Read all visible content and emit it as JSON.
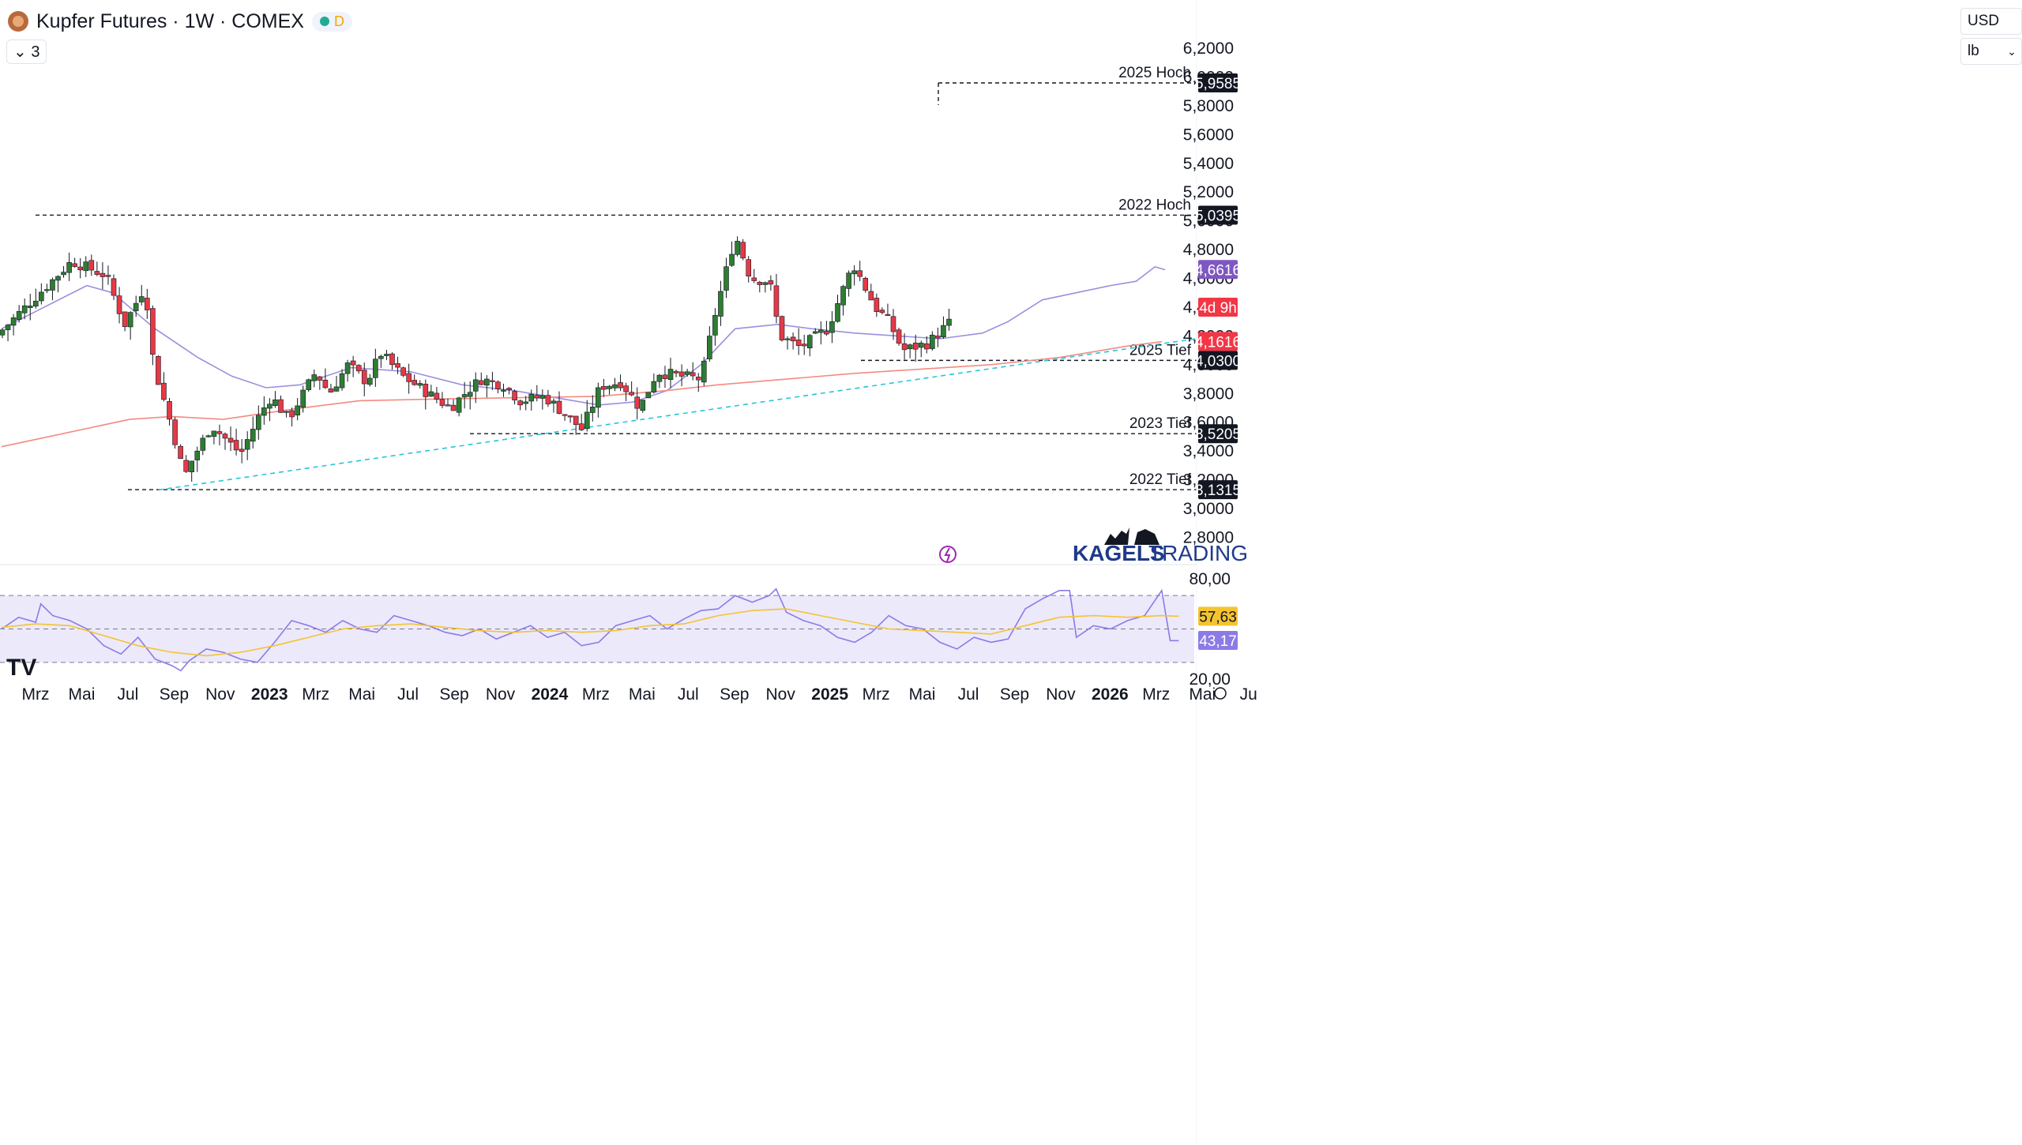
{
  "header": {
    "title": "Kupfer Futures · 1W · COMEX",
    "status_label": "D",
    "collapse_label": "⌄ 3"
  },
  "scale": {
    "currency": "USD",
    "unit": "lb"
  },
  "watermark": {
    "brand_a": "KAGELS",
    "brand_b": "TRADING"
  },
  "colors": {
    "up": "#26a69a",
    "up_fill": "#2e7d32",
    "down": "#e53950",
    "down_fill": "#e63946",
    "ma_short": "#9c8fde",
    "ma_long": "#f28b82",
    "trend": "#26c6da",
    "rsi": "#8c7ae6",
    "rsi_ma": "#f4c430",
    "rsi_band": "#ece9fb"
  },
  "chart_data": [
    {
      "type": "candlestick",
      "title": "Kupfer Futures · 1W · COMEX",
      "ylim": [
        2.65,
        6.25
      ],
      "y_ticks": [
        "6,2000",
        "6,0000",
        "5,8000",
        "5,6000",
        "5,4000",
        "5,2000",
        "5,0000",
        "4,8000",
        "4,6000",
        "4,4000",
        "4,2000",
        "4,0000",
        "3,8000",
        "3,6000",
        "3,4000",
        "3,2000",
        "3,0000",
        "2,8000"
      ],
      "x_ticks": [
        "Mrz",
        "Mai",
        "Jul",
        "Sep",
        "Nov",
        "2023",
        "Mrz",
        "Mai",
        "Jul",
        "Sep",
        "Nov",
        "2024",
        "Mrz",
        "Mai",
        "Jul",
        "Sep",
        "Nov",
        "2025",
        "Mrz",
        "Mai",
        "Jul",
        "Sep",
        "Nov",
        "2026",
        "Mrz",
        "Mai",
        "Ju"
      ],
      "levels": [
        {
          "label": "2025 Hoch",
          "value": 5.9585,
          "tag": "5,9585"
        },
        {
          "label": "2022 Hoch",
          "value": 5.0395,
          "tag": "5,0395"
        },
        {
          "label": "2025 Tief",
          "value": 4.03,
          "tag": "4,0300"
        },
        {
          "label": "2023 Tief",
          "value": 3.5205,
          "tag": "3,5205"
        },
        {
          "label": "2022 Tief",
          "value": 3.1315,
          "tag": "3,1315"
        }
      ],
      "price_tags": [
        {
          "value": 4.6616,
          "tag": "4,6616",
          "color": "#7e57c2"
        },
        {
          "value": 4.4,
          "tag": "4d 9h",
          "color": "#f23645"
        },
        {
          "value": 4.1616,
          "tag": "4,1616",
          "color": "#f23645"
        }
      ],
      "close_path": [
        [
          2.0,
          4.45
        ],
        [
          4.3,
          4.72
        ],
        [
          6.3,
          4.62
        ],
        [
          7.4,
          4.28
        ],
        [
          8.6,
          4.55
        ],
        [
          9.1,
          4.0
        ],
        [
          10.2,
          3.55
        ],
        [
          10.9,
          3.22
        ],
        [
          11.4,
          3.35
        ],
        [
          12.5,
          3.58
        ],
        [
          13.6,
          3.45
        ],
        [
          14.2,
          3.38
        ],
        [
          15.3,
          3.65
        ],
        [
          16.0,
          3.78
        ],
        [
          17.0,
          3.62
        ],
        [
          18.6,
          3.95
        ],
        [
          19.4,
          3.8
        ],
        [
          20.5,
          4.0
        ],
        [
          21.6,
          3.88
        ],
        [
          22.4,
          4.08
        ],
        [
          23.7,
          3.92
        ],
        [
          25.2,
          3.8
        ],
        [
          26.5,
          3.7
        ],
        [
          27.5,
          3.82
        ],
        [
          28.3,
          3.9
        ],
        [
          29.6,
          3.86
        ],
        [
          30.6,
          3.75
        ],
        [
          32.0,
          3.78
        ],
        [
          33.0,
          3.68
        ],
        [
          34.2,
          3.55
        ],
        [
          35.3,
          3.85
        ],
        [
          36.5,
          3.88
        ],
        [
          37.6,
          3.7
        ],
        [
          38.6,
          3.95
        ],
        [
          40.0,
          3.92
        ],
        [
          41.2,
          3.9
        ],
        [
          42.0,
          4.35
        ],
        [
          43.2,
          4.9
        ],
        [
          44.1,
          4.6
        ],
        [
          45.2,
          4.58
        ],
        [
          45.8,
          4.2
        ],
        [
          47.0,
          4.12
        ],
        [
          48.6,
          4.25
        ],
        [
          50.1,
          4.7
        ],
        [
          51.4,
          4.4
        ],
        [
          52.2,
          4.3
        ],
        [
          53.0,
          4.1
        ],
        [
          54.5,
          4.15
        ],
        [
          56.0,
          4.32
        ],
        [
          57.0,
          4.28
        ],
        [
          58.0,
          4.5
        ],
        [
          59.7,
          4.85
        ],
        [
          60.3,
          4.6
        ],
        [
          61.3,
          4.98
        ],
        [
          62.2,
          4.75
        ],
        [
          63.3,
          4.65
        ],
        [
          65.0,
          4.78
        ],
        [
          66.0,
          4.75
        ],
        [
          67.0,
          4.95
        ],
        [
          67.8,
          5.55
        ],
        [
          68.4,
          5.8
        ],
        [
          68.7,
          4.4
        ],
        [
          68.9,
          4.38
        ]
      ],
      "series": [
        {
          "name": "",
          "kind": "ma",
          "color_key": "ma_short",
          "points": [
            [
              0,
              4.25
            ],
            [
              5.0,
              4.55
            ],
            [
              6.5,
              4.5
            ],
            [
              9.0,
              4.25
            ],
            [
              11.5,
              4.05
            ],
            [
              13.5,
              3.92
            ],
            [
              15.5,
              3.84
            ],
            [
              17.5,
              3.86
            ],
            [
              20.5,
              3.98
            ],
            [
              24.0,
              3.95
            ],
            [
              27.0,
              3.86
            ],
            [
              30.0,
              3.82
            ],
            [
              33.0,
              3.76
            ],
            [
              35.0,
              3.72
            ],
            [
              37.0,
              3.74
            ],
            [
              39.0,
              3.82
            ],
            [
              41.0,
              4.0
            ],
            [
              43.0,
              4.25
            ],
            [
              45.5,
              4.28
            ],
            [
              47.5,
              4.25
            ],
            [
              50.0,
              4.22
            ],
            [
              52.5,
              4.2
            ],
            [
              55.0,
              4.18
            ],
            [
              57.5,
              4.22
            ],
            [
              59.0,
              4.3
            ],
            [
              61.0,
              4.45
            ],
            [
              63.0,
              4.5
            ],
            [
              65.0,
              4.55
            ],
            [
              66.5,
              4.58
            ],
            [
              67.6,
              4.68
            ],
            [
              68.2,
              4.66
            ]
          ]
        },
        {
          "name": "",
          "kind": "ma",
          "color_key": "ma_long",
          "points": [
            [
              0,
              3.43
            ],
            [
              7.5,
              3.62
            ],
            [
              10.0,
              3.64
            ],
            [
              13.0,
              3.62
            ],
            [
              17.0,
              3.69
            ],
            [
              21.0,
              3.75
            ],
            [
              25.0,
              3.76
            ],
            [
              30.0,
              3.77
            ],
            [
              35.0,
              3.78
            ],
            [
              39.0,
              3.82
            ],
            [
              42.0,
              3.86
            ],
            [
              46.0,
              3.9
            ],
            [
              50.0,
              3.94
            ],
            [
              54.0,
              3.97
            ],
            [
              58.0,
              4.0
            ],
            [
              62.0,
              4.05
            ],
            [
              66.0,
              4.13
            ],
            [
              68.0,
              4.16
            ]
          ]
        },
        {
          "name": "",
          "kind": "trendline",
          "color_key": "trend",
          "points": [
            [
              9.2,
              3.13
            ],
            [
              70.0,
              4.18
            ]
          ]
        }
      ]
    },
    {
      "type": "line",
      "ylim": [
        20,
        80
      ],
      "y_ticks": [
        "80,00",
        "20,00"
      ],
      "bands": [
        70,
        50,
        30
      ],
      "tags": [
        {
          "value": 57.63,
          "tag": "57,63",
          "color": "#f4c430"
        },
        {
          "value": 43.17,
          "tag": "43,17",
          "color": "#8c7ae6"
        }
      ],
      "series": [
        {
          "name": "",
          "color_key": "rsi",
          "points": [
            [
              0,
              50
            ],
            [
              1,
              57
            ],
            [
              2,
              54
            ],
            [
              2.3,
              65
            ],
            [
              3,
              58
            ],
            [
              4,
              55
            ],
            [
              5,
              50
            ],
            [
              6,
              40
            ],
            [
              7,
              35
            ],
            [
              8,
              45
            ],
            [
              9,
              32
            ],
            [
              10,
              28
            ],
            [
              10.5,
              25
            ],
            [
              11,
              31
            ],
            [
              12,
              38
            ],
            [
              13,
              36
            ],
            [
              14,
              32
            ],
            [
              15,
              30
            ],
            [
              16,
              42
            ],
            [
              17,
              55
            ],
            [
              18,
              52
            ],
            [
              19,
              48
            ],
            [
              20,
              55
            ],
            [
              21,
              50
            ],
            [
              22,
              48
            ],
            [
              23,
              58
            ],
            [
              24,
              55
            ],
            [
              25,
              52
            ],
            [
              26,
              48
            ],
            [
              27,
              46
            ],
            [
              28,
              50
            ],
            [
              29,
              44
            ],
            [
              30,
              48
            ],
            [
              31,
              52
            ],
            [
              32,
              45
            ],
            [
              33,
              48
            ],
            [
              34,
              40
            ],
            [
              35,
              42
            ],
            [
              36,
              52
            ],
            [
              37,
              55
            ],
            [
              38,
              58
            ],
            [
              39,
              50
            ],
            [
              40,
              56
            ],
            [
              41,
              61
            ],
            [
              42,
              62
            ],
            [
              43,
              70
            ],
            [
              44,
              66
            ],
            [
              45,
              70
            ],
            [
              45.4,
              74
            ],
            [
              46,
              60
            ],
            [
              47,
              55
            ],
            [
              48,
              52
            ],
            [
              49,
              45
            ],
            [
              50,
              42
            ],
            [
              51,
              48
            ],
            [
              52,
              58
            ],
            [
              53,
              52
            ],
            [
              54,
              50
            ],
            [
              55,
              42
            ],
            [
              56,
              38
            ],
            [
              57,
              45
            ],
            [
              58,
              42
            ],
            [
              59,
              44
            ],
            [
              60,
              62
            ],
            [
              61,
              68
            ],
            [
              62,
              73
            ],
            [
              62.6,
              73
            ],
            [
              63,
              45
            ],
            [
              64,
              52
            ],
            [
              65,
              50
            ],
            [
              66,
              55
            ],
            [
              67,
              58
            ],
            [
              68,
              73
            ],
            [
              68.5,
              43
            ],
            [
              69,
              43
            ]
          ]
        },
        {
          "name": "",
          "color_key": "rsi_ma",
          "points": [
            [
              0,
              51
            ],
            [
              2,
              53
            ],
            [
              4,
              52
            ],
            [
              6,
              46
            ],
            [
              8,
              40
            ],
            [
              10,
              36
            ],
            [
              12,
              34
            ],
            [
              14,
              36
            ],
            [
              16,
              40
            ],
            [
              18,
              45
            ],
            [
              20,
              50
            ],
            [
              22,
              52
            ],
            [
              24,
              53
            ],
            [
              26,
              51
            ],
            [
              28,
              49
            ],
            [
              30,
              48
            ],
            [
              32,
              49
            ],
            [
              34,
              48
            ],
            [
              36,
              49
            ],
            [
              38,
              52
            ],
            [
              40,
              53
            ],
            [
              42,
              58
            ],
            [
              44,
              61
            ],
            [
              46,
              62
            ],
            [
              48,
              58
            ],
            [
              50,
              54
            ],
            [
              52,
              50
            ],
            [
              54,
              49
            ],
            [
              56,
              48
            ],
            [
              58,
              47
            ],
            [
              60,
              52
            ],
            [
              62,
              57
            ],
            [
              64,
              58
            ],
            [
              66,
              57
            ],
            [
              68,
              58
            ],
            [
              69,
              57.6
            ]
          ]
        }
      ]
    }
  ]
}
